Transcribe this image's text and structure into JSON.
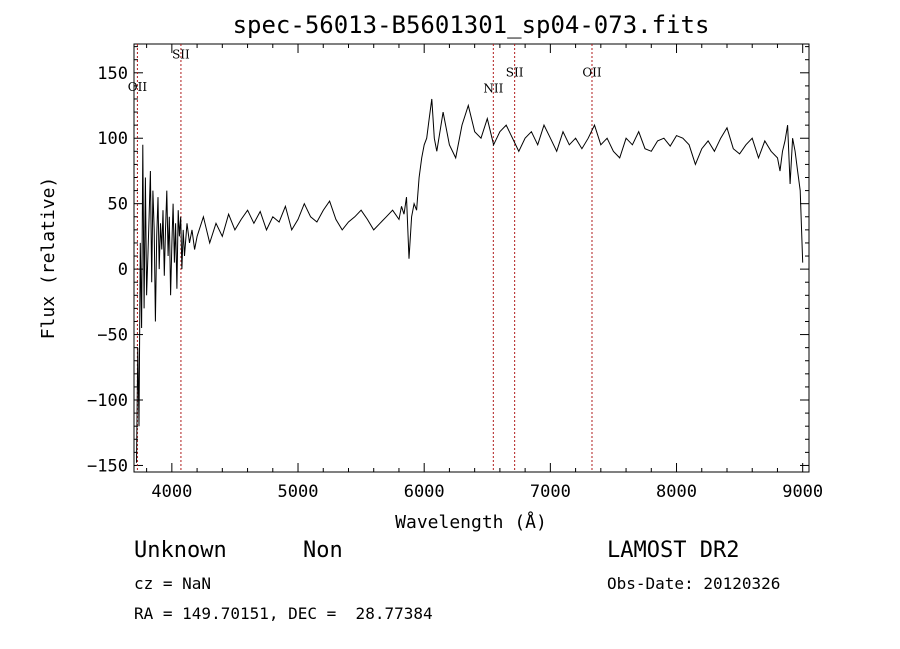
{
  "chart_data": {
    "type": "line",
    "title": "spec-56013-B5601301_sp04-073.fits",
    "xlabel": "Wavelength (Å)",
    "ylabel": "Flux (relative)",
    "xlim": [
      3700,
      9050
    ],
    "ylim": [
      -155,
      172
    ],
    "xticks": [
      4000,
      5000,
      6000,
      7000,
      8000,
      9000
    ],
    "yticks": [
      -150,
      -100,
      -50,
      0,
      50,
      100,
      150
    ],
    "grid": false,
    "line_color": "#000000",
    "marker_color": "#b01c1c",
    "lines": [
      {
        "label": "OII",
        "wavelength": 3727,
        "label_flux": 136
      },
      {
        "label": "SII",
        "wavelength": 4072,
        "label_flux": 161
      },
      {
        "label": "NII",
        "wavelength": 6548,
        "label_flux": 135
      },
      {
        "label": "SII",
        "wavelength": 6717,
        "label_flux": 147
      },
      {
        "label": "OII",
        "wavelength": 7330,
        "label_flux": 147
      }
    ],
    "series": [
      {
        "x": [
          3720,
          3730,
          3740,
          3750,
          3760,
          3770,
          3780,
          3790,
          3800,
          3810,
          3820,
          3830,
          3840,
          3850,
          3860,
          3870,
          3880,
          3890,
          3900,
          3910,
          3920,
          3930,
          3940,
          3950,
          3960,
          3970,
          3980,
          3990,
          4000,
          4010,
          4020,
          4030,
          4040,
          4050,
          4060,
          4070,
          4080,
          4090,
          4100,
          4120,
          4140,
          4160,
          4180,
          4200,
          4250,
          4300,
          4350,
          4400,
          4450,
          4500,
          4550,
          4600,
          4650,
          4700,
          4750,
          4800,
          4850,
          4900,
          4950,
          5000,
          5050,
          5100,
          5150,
          5200,
          5250,
          5300,
          5350,
          5400,
          5450,
          5500,
          5550,
          5600,
          5650,
          5700,
          5750,
          5800,
          5820,
          5840,
          5860,
          5880,
          5900,
          5920,
          5940,
          5960,
          5980,
          6000,
          6020,
          6040,
          6060,
          6080,
          6100,
          6150,
          6200,
          6250,
          6300,
          6350,
          6400,
          6450,
          6500,
          6550,
          6600,
          6650,
          6700,
          6750,
          6800,
          6850,
          6900,
          6950,
          7000,
          7050,
          7100,
          7150,
          7200,
          7250,
          7300,
          7350,
          7400,
          7450,
          7500,
          7550,
          7600,
          7650,
          7700,
          7750,
          7800,
          7850,
          7900,
          7950,
          8000,
          8050,
          8100,
          8150,
          8200,
          8250,
          8300,
          8350,
          8400,
          8450,
          8500,
          8550,
          8600,
          8650,
          8700,
          8750,
          8800,
          8820,
          8840,
          8860,
          8880,
          8900,
          8920,
          8940,
          8960,
          8980,
          9000
        ],
        "y": [
          -148,
          -60,
          -120,
          20,
          -45,
          95,
          -30,
          70,
          -20,
          10,
          40,
          75,
          -10,
          60,
          30,
          -40,
          25,
          55,
          0,
          35,
          15,
          45,
          -5,
          30,
          60,
          10,
          40,
          -20,
          20,
          50,
          5,
          35,
          -15,
          45,
          25,
          40,
          0,
          30,
          10,
          35,
          20,
          30,
          15,
          25,
          40,
          20,
          35,
          25,
          42,
          30,
          38,
          45,
          35,
          44,
          30,
          40,
          36,
          48,
          30,
          38,
          50,
          40,
          36,
          45,
          52,
          38,
          30,
          36,
          40,
          45,
          38,
          30,
          35,
          40,
          45,
          38,
          48,
          42,
          55,
          8,
          40,
          50,
          45,
          70,
          85,
          95,
          100,
          115,
          130,
          100,
          90,
          120,
          95,
          85,
          110,
          125,
          105,
          100,
          115,
          95,
          105,
          110,
          100,
          90,
          100,
          105,
          95,
          110,
          100,
          90,
          105,
          95,
          100,
          92,
          100,
          110,
          95,
          100,
          90,
          85,
          100,
          95,
          105,
          92,
          90,
          98,
          100,
          94,
          102,
          100,
          95,
          80,
          92,
          98,
          90,
          100,
          108,
          92,
          88,
          95,
          100,
          85,
          98,
          90,
          85,
          75,
          90,
          98,
          110,
          65,
          100,
          90,
          75,
          60,
          5
        ]
      }
    ]
  },
  "info": {
    "class": "Unknown",
    "subclass": "Non",
    "survey": "LAMOST DR2",
    "cz": "cz = NaN",
    "obsdate": "Obs-Date: 20120326",
    "radec": "RA = 149.70151, DEC =  28.77384"
  }
}
